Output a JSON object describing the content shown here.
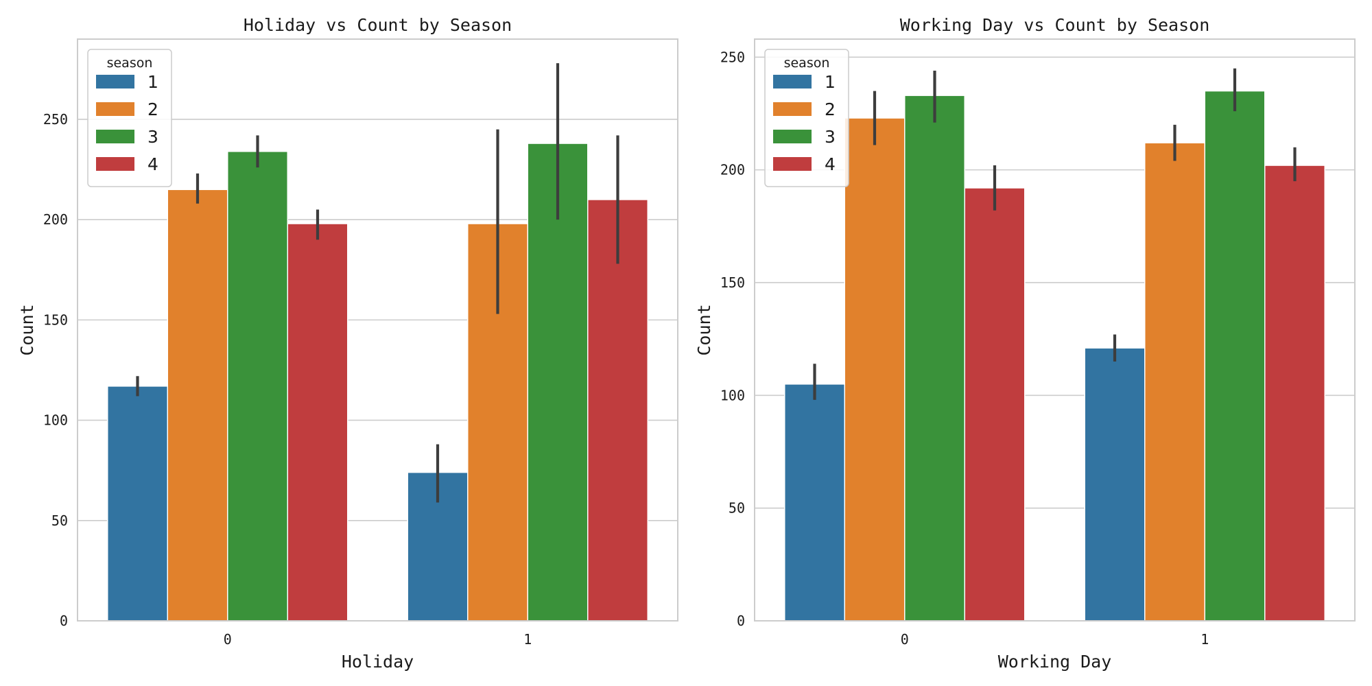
{
  "chart_data": [
    {
      "type": "bar",
      "title": "Holiday vs Count by Season",
      "xlabel": "Holiday",
      "ylabel": "Count",
      "categories": [
        "0",
        "1"
      ],
      "ylim": [
        0,
        290
      ],
      "yticks": [
        0,
        50,
        100,
        150,
        200,
        250
      ],
      "grid": true,
      "legend": {
        "title": "season",
        "placement": "top-left"
      },
      "series": [
        {
          "name": "1",
          "color": "#3274a1",
          "values": [
            117,
            74
          ],
          "ci": [
            [
              112,
              122
            ],
            [
              59,
              88
            ]
          ]
        },
        {
          "name": "2",
          "color": "#e1812c",
          "values": [
            215,
            198
          ],
          "ci": [
            [
              208,
              223
            ],
            [
              153,
              245
            ]
          ]
        },
        {
          "name": "3",
          "color": "#3a923a",
          "values": [
            234,
            238
          ],
          "ci": [
            [
              226,
              242
            ],
            [
              200,
              278
            ]
          ]
        },
        {
          "name": "4",
          "color": "#c03d3e",
          "values": [
            198,
            210
          ],
          "ci": [
            [
              190,
              205
            ],
            [
              178,
              242
            ]
          ]
        }
      ]
    },
    {
      "type": "bar",
      "title": "Working Day vs Count by Season",
      "xlabel": "Working Day",
      "ylabel": "Count",
      "categories": [
        "0",
        "1"
      ],
      "ylim": [
        0,
        258
      ],
      "yticks": [
        0,
        50,
        100,
        150,
        200,
        250
      ],
      "grid": true,
      "legend": {
        "title": "season",
        "placement": "top-left"
      },
      "series": [
        {
          "name": "1",
          "color": "#3274a1",
          "values": [
            105,
            121
          ],
          "ci": [
            [
              98,
              114
            ],
            [
              115,
              127
            ]
          ]
        },
        {
          "name": "2",
          "color": "#e1812c",
          "values": [
            223,
            212
          ],
          "ci": [
            [
              211,
              235
            ],
            [
              204,
              220
            ]
          ]
        },
        {
          "name": "3",
          "color": "#3a923a",
          "values": [
            233,
            235
          ],
          "ci": [
            [
              221,
              244
            ],
            [
              226,
              245
            ]
          ]
        },
        {
          "name": "4",
          "color": "#c03d3e",
          "values": [
            192,
            202
          ],
          "ci": [
            [
              182,
              202
            ],
            [
              195,
              210
            ]
          ]
        }
      ]
    }
  ]
}
